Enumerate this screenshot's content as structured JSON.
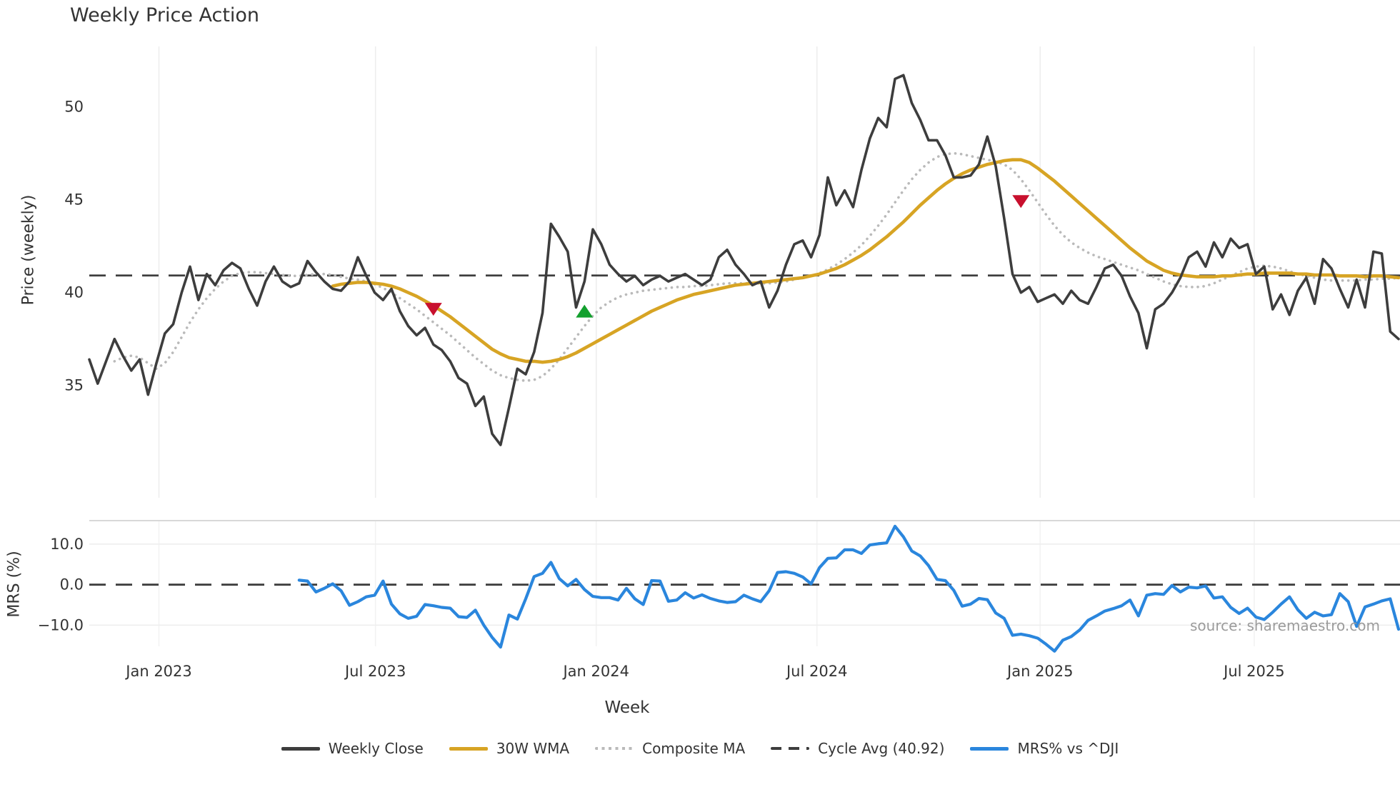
{
  "title": "Weekly Price Action",
  "source": "source: sharemaestro.com",
  "colors": {
    "dark": "#3d3d3d",
    "gold": "#d7a424",
    "gray": "#bababa",
    "blue": "#2a86dd",
    "sell": "#c8102e",
    "buy": "#13a02e",
    "grid": "#ededed",
    "grid_mrs": "#f2f2f2",
    "panel_border": "#d8d8d8",
    "tick_text": "#333333"
  },
  "legend": {
    "items": [
      {
        "label": "Weekly Close",
        "swatch": "solid",
        "color_key": "dark"
      },
      {
        "label": "30W WMA",
        "swatch": "solid",
        "color_key": "gold"
      },
      {
        "label": "Composite MA",
        "swatch": "dotted",
        "color_key": "gray"
      },
      {
        "label": "Cycle Avg (40.92)",
        "swatch": "dashed",
        "color_key": "dark"
      },
      {
        "label": "MRS% vs ^DJI",
        "swatch": "solid",
        "color_key": "blue"
      }
    ]
  },
  "chart_data": {
    "type": "line",
    "xlabel": "Week",
    "total_weeks": 157,
    "xticks": [
      {
        "week": 8.3,
        "label": "Jan 2023"
      },
      {
        "week": 34.1,
        "label": "Jul 2023"
      },
      {
        "week": 60.4,
        "label": "Jan 2024"
      },
      {
        "week": 86.7,
        "label": "Jul 2024"
      },
      {
        "week": 113.3,
        "label": "Jan 2025"
      },
      {
        "week": 138.8,
        "label": "Jul 2025"
      }
    ],
    "panels": [
      {
        "name": "price",
        "ylabel": "Price (weekly)",
        "ylim": [
          30.3,
          53.25
        ],
        "yticks": [
          {
            "v": 35,
            "label": "35"
          },
          {
            "v": 40,
            "label": "40"
          },
          {
            "v": 45,
            "label": "45"
          },
          {
            "v": 50,
            "label": "50"
          }
        ],
        "cycle_avg": 40.92,
        "series": [
          {
            "name": "Weekly Close",
            "color_key": "dark",
            "style": "solid",
            "width": 3.6,
            "start_week": 0,
            "values": [
              36.4,
              35.1,
              36.3,
              37.5,
              36.6,
              35.8,
              36.4,
              34.5,
              36.2,
              37.8,
              38.3,
              40.0,
              41.4,
              39.6,
              41.0,
              40.4,
              41.2,
              41.6,
              41.3,
              40.2,
              39.3,
              40.6,
              41.4,
              40.6,
              40.3,
              40.5,
              41.7,
              41.1,
              40.6,
              40.2,
              40.1,
              40.6,
              41.9,
              40.9,
              40.0,
              39.6,
              40.2,
              39.0,
              38.2,
              37.7,
              38.1,
              37.2,
              36.9,
              36.3,
              35.4,
              35.1,
              33.9,
              34.4,
              32.4,
              31.8,
              33.8,
              35.9,
              35.6,
              36.8,
              38.9,
              43.7,
              43.0,
              42.2,
              39.2,
              40.6,
              43.4,
              42.6,
              41.5,
              41.0,
              40.6,
              40.9,
              40.4,
              40.7,
              40.9,
              40.6,
              40.8,
              41.0,
              40.7,
              40.4,
              40.7,
              41.9,
              42.3,
              41.5,
              41.0,
              40.4,
              40.6,
              39.2,
              40.1,
              41.5,
              42.6,
              42.8,
              41.9,
              43.1,
              46.2,
              44.7,
              45.5,
              44.6,
              46.6,
              48.3,
              49.4,
              48.9,
              51.5,
              51.7,
              50.2,
              49.3,
              48.2,
              48.2,
              47.4,
              46.2,
              46.2,
              46.3,
              46.9,
              48.4,
              46.8,
              44.0,
              41.0,
              40.0,
              40.3,
              39.5,
              39.7,
              39.9,
              39.4,
              40.1,
              39.6,
              39.4,
              40.3,
              41.3,
              41.5,
              40.9,
              39.8,
              38.9,
              37.0,
              39.1,
              39.4,
              40.0,
              40.8,
              41.9,
              42.2,
              41.4,
              42.7,
              41.9,
              42.9,
              42.4,
              42.6,
              41.0,
              41.4,
              39.1,
              39.9,
              38.8,
              40.1,
              40.8,
              39.4,
              41.8,
              41.3,
              40.2,
              39.2,
              40.7,
              39.2,
              42.2,
              42.1,
              37.9,
              37.5
            ]
          },
          {
            "name": "30W WMA",
            "color_key": "gold",
            "style": "solid",
            "width": 4.6,
            "start_week": 29,
            "values": [
              40.35,
              40.45,
              40.5,
              40.55,
              40.55,
              40.5,
              40.45,
              40.35,
              40.2,
              40.0,
              39.8,
              39.55,
              39.3,
              39.0,
              38.7,
              38.35,
              38.0,
              37.65,
              37.3,
              36.95,
              36.7,
              36.5,
              36.4,
              36.3,
              36.3,
              36.25,
              36.3,
              36.4,
              36.55,
              36.75,
              37.0,
              37.25,
              37.5,
              37.75,
              38.0,
              38.25,
              38.5,
              38.75,
              39.0,
              39.2,
              39.4,
              39.6,
              39.75,
              39.9,
              40.0,
              40.1,
              40.2,
              40.3,
              40.4,
              40.45,
              40.5,
              40.55,
              40.6,
              40.65,
              40.7,
              40.75,
              40.8,
              40.9,
              41.0,
              41.15,
              41.3,
              41.5,
              41.75,
              42.0,
              42.3,
              42.65,
              43.0,
              43.4,
              43.8,
              44.25,
              44.7,
              45.1,
              45.5,
              45.85,
              46.15,
              46.4,
              46.6,
              46.75,
              46.9,
              47.0,
              47.1,
              47.15,
              47.15,
              47.0,
              46.7,
              46.35,
              46.0,
              45.6,
              45.2,
              44.8,
              44.4,
              44.0,
              43.6,
              43.2,
              42.8,
              42.4,
              42.05,
              41.7,
              41.45,
              41.2,
              41.05,
              40.95,
              40.9,
              40.85,
              40.85,
              40.85,
              40.9,
              40.9,
              40.95,
              41.0,
              41.0,
              41.05,
              41.05,
              41.05,
              41.05,
              41.0,
              41.0,
              40.95,
              40.95,
              40.95,
              40.9,
              40.9,
              40.9,
              40.85,
              40.9,
              40.9,
              40.85,
              40.8
            ]
          },
          {
            "name": "Composite MA",
            "color_key": "gray",
            "style": "dotted",
            "width": 3.6,
            "start_week": 3,
            "values": [
              36.3,
              36.5,
              36.6,
              36.5,
              36.2,
              35.9,
              36.2,
              36.8,
              37.6,
              38.4,
              39.1,
              39.7,
              40.2,
              40.6,
              40.9,
              41.05,
              41.1,
              41.1,
              41.05,
              41.0,
              40.95,
              40.9,
              40.9,
              40.95,
              41.0,
              41.0,
              40.95,
              40.85,
              40.75,
              40.7,
              40.6,
              40.45,
              40.25,
              40.0,
              39.7,
              39.4,
              39.1,
              38.75,
              38.4,
              38.05,
              37.7,
              37.3,
              36.9,
              36.5,
              36.15,
              35.8,
              35.55,
              35.4,
              35.3,
              35.25,
              35.3,
              35.5,
              35.9,
              36.4,
              37.0,
              37.6,
              38.2,
              38.75,
              39.2,
              39.5,
              39.75,
              39.9,
              40.0,
              40.1,
              40.15,
              40.2,
              40.25,
              40.3,
              40.3,
              40.35,
              40.35,
              40.4,
              40.45,
              40.5,
              40.5,
              40.5,
              40.5,
              40.5,
              40.5,
              40.55,
              40.6,
              40.7,
              40.8,
              40.9,
              41.05,
              41.25,
              41.5,
              41.8,
              42.15,
              42.55,
              43.05,
              43.6,
              44.2,
              44.85,
              45.5,
              46.1,
              46.6,
              47.0,
              47.3,
              47.45,
              47.5,
              47.45,
              47.35,
              47.25,
              47.15,
              47.05,
              46.9,
              46.6,
              46.1,
              45.5,
              44.85,
              44.2,
              43.6,
              43.1,
              42.7,
              42.4,
              42.15,
              41.95,
              41.8,
              41.65,
              41.5,
              41.35,
              41.2,
              41.0,
              40.8,
              40.6,
              40.45,
              40.35,
              40.3,
              40.3,
              40.35,
              40.5,
              40.7,
              40.9,
              41.1,
              41.3,
              41.4,
              41.45,
              41.4,
              41.3,
              41.15,
              41.0,
              40.9,
              40.8,
              40.7,
              40.65,
              40.65,
              40.65,
              40.65,
              40.7,
              40.7,
              40.75,
              40.75,
              40.8
            ]
          }
        ],
        "markers": [
          {
            "week": 41,
            "price": 39.1,
            "type": "sell"
          },
          {
            "week": 59,
            "price": 39.0,
            "type": "buy"
          },
          {
            "week": 111,
            "price": 44.9,
            "type": "sell"
          }
        ]
      },
      {
        "name": "mrs",
        "ylabel": "MRS (%)",
        "ylim": [
          -17.5,
          15.8
        ],
        "yticks": [
          {
            "v": 10,
            "label": "10.0"
          },
          {
            "v": 0,
            "label": "0.0"
          },
          {
            "v": -10,
            "label": "−10.0"
          }
        ],
        "zero_line": 0.0,
        "series": [
          {
            "name": "MRS% vs ^DJI",
            "color_key": "blue",
            "style": "solid",
            "width": 4.2,
            "start_week": 25,
            "values": [
              1.1,
              0.9,
              -1.8,
              -0.9,
              0.2,
              -1.5,
              -5.1,
              -4.2,
              -3.0,
              -2.6,
              0.9,
              -4.8,
              -7.2,
              -8.3,
              -7.8,
              -4.9,
              -5.2,
              -5.6,
              -5.8,
              -7.9,
              -8.1,
              -6.3,
              -10.0,
              -13.0,
              -15.4,
              -7.5,
              -8.5,
              -3.5,
              2.0,
              2.8,
              5.5,
              1.5,
              -0.3,
              1.3,
              -1.2,
              -2.9,
              -3.2,
              -3.2,
              -3.8,
              -0.9,
              -3.5,
              -4.9,
              1.0,
              0.9,
              -4.1,
              -3.8,
              -2.0,
              -3.3,
              -2.5,
              -3.4,
              -4.0,
              -4.4,
              -4.2,
              -2.6,
              -3.5,
              -4.2,
              -1.5,
              3.0,
              3.2,
              2.8,
              1.9,
              0.2,
              4.2,
              6.5,
              6.6,
              8.6,
              8.6,
              7.7,
              9.8,
              10.1,
              10.3,
              14.4,
              11.8,
              8.3,
              7.1,
              4.7,
              1.3,
              1.0,
              -1.4,
              -5.3,
              -4.8,
              -3.4,
              -3.7,
              -7.0,
              -8.3,
              -12.5,
              -12.2,
              -12.6,
              -13.2,
              -14.7,
              -16.4,
              -13.7,
              -12.8,
              -11.2,
              -8.8,
              -7.7,
              -6.5,
              -5.9,
              -5.2,
              -3.8,
              -7.7,
              -2.6,
              -2.2,
              -2.4,
              -0.2,
              -1.8,
              -0.6,
              -0.8,
              -0.3,
              -3.3,
              -3.0,
              -5.6,
              -7.1,
              -5.8,
              -8.0,
              -8.6,
              -6.8,
              -4.8,
              -3.0,
              -6.2,
              -8.3,
              -6.8,
              -7.7,
              -7.4,
              -2.2,
              -4.2,
              -10.3,
              -5.5,
              -4.8,
              -4.0,
              -3.5,
              -11.0
            ]
          }
        ]
      }
    ]
  }
}
